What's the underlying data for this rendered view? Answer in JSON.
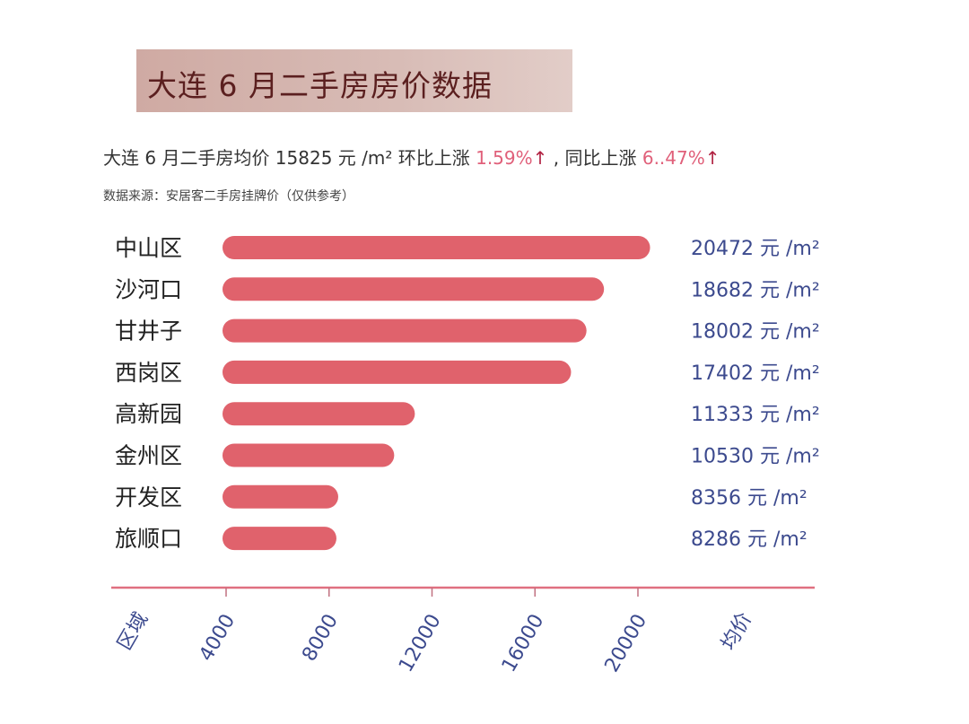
{
  "header": {
    "title": "大连 6 月二手房房价数据",
    "subtitle_prefix": "大连 6 月二手房均价 15825 元 /m² 环比上涨 ",
    "mom_change": "1.59%",
    "arrow": "↑",
    "subtitle_mid": " , 同比上涨 ",
    "yoy_change": "6..47%",
    "source": "数据来源：安居客二手房挂牌价（仅供参考）"
  },
  "colors": {
    "bar": "#e0626c",
    "axis": "#e07080",
    "label": "#3c4a8e",
    "title_bg": "#cfaaa3"
  },
  "chart_data": {
    "type": "bar",
    "orientation": "horizontal",
    "xlabel": "均价",
    "ylabel": "区域",
    "categories": [
      "中山区",
      "沙河口",
      "甘井子",
      "西岗区",
      "高新园",
      "金州区",
      "开发区",
      "旅顺口"
    ],
    "values": [
      20472,
      18682,
      18002,
      17402,
      11333,
      10530,
      8356,
      8286
    ],
    "value_labels": [
      "20472 元 /m²",
      "18682 元 /m²",
      "18002 元 /m²",
      "17402 元 /m²",
      "11333 元 /m²",
      "10530 元 /m²",
      "8356 元 /m²",
      "8286 元 /m²"
    ],
    "x_ticks": [
      "4000",
      "8000",
      "12000",
      "16000",
      "20000"
    ],
    "xlim": [
      4000,
      20000
    ],
    "grid": false
  }
}
